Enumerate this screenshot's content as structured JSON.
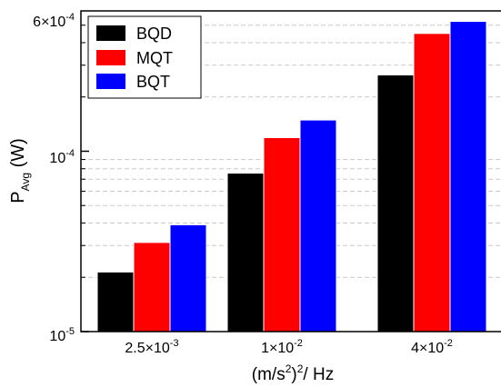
{
  "chart_data": {
    "type": "bar",
    "categories": [
      {
        "base": "2.5×10",
        "exp": "-3"
      },
      {
        "base": "1×10",
        "exp": "-2"
      },
      {
        "base": "4×10",
        "exp": "-2"
      }
    ],
    "series": [
      {
        "name": "BQD",
        "color": "#000000",
        "values": [
          2.14e-05,
          7.56e-05,
          0.000265
        ]
      },
      {
        "name": "MQT",
        "color": "#ff0000",
        "values": [
          3.12e-05,
          0.000119,
          0.00045
        ]
      },
      {
        "name": "BQT",
        "color": "#0000ff",
        "values": [
          3.91e-05,
          0.000149,
          0.000525
        ]
      }
    ],
    "y_scale": "log",
    "ylim": [
      1e-05,
      0.0006
    ],
    "y_ticks": [
      {
        "value": 1e-05,
        "base": "10",
        "exp": "-5"
      },
      {
        "value": 0.0001,
        "base": "10",
        "exp": "-4"
      },
      {
        "value": 0.0006,
        "base": "6×10",
        "exp": "-4"
      }
    ],
    "ylabel": {
      "main": "P",
      "sub": "Avg",
      "rest": " (W)"
    },
    "xlabel": {
      "prefix": "(m/s",
      "sup1": "2",
      "mid": ")",
      "sup2": "2",
      "suffix": "/ Hz"
    },
    "grid": "minor horizontal dashed",
    "legend_position": "top-left"
  }
}
